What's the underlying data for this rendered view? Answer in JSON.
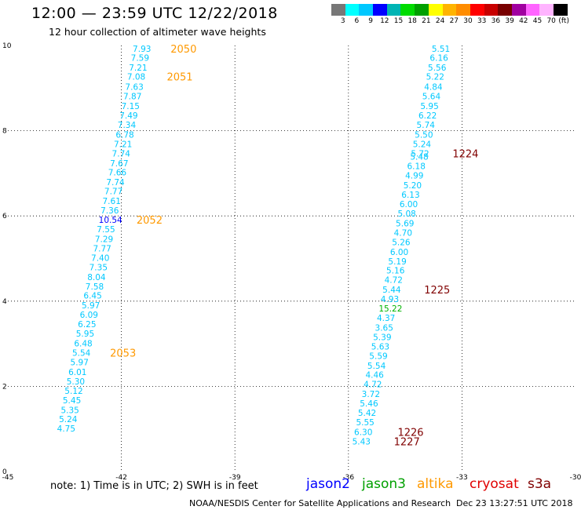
{
  "header": {
    "title": "12:00 — 23:59 UTC 12/22/2018",
    "subtitle": "12 hour collection of altimeter wave heights"
  },
  "colorbar": {
    "labels": [
      "3",
      "6",
      "9",
      "12",
      "15",
      "18",
      "21",
      "24",
      "27",
      "30",
      "33",
      "36",
      "39",
      "42",
      "45",
      "70",
      "(ft)"
    ],
    "colors": [
      "#777777",
      "#00ffff",
      "#00c8ff",
      "#0000ff",
      "#00b4b4",
      "#00dc00",
      "#00a000",
      "#ffff00",
      "#ffb400",
      "#ff8c00",
      "#ff0000",
      "#c80000",
      "#780000",
      "#a000a0",
      "#ff64ff",
      "#ffb4ff",
      "#000000"
    ]
  },
  "chart_data": {
    "type": "scatter",
    "x_axis": {
      "range": [
        -45,
        -30
      ],
      "ticks": [
        "-45",
        "-42",
        "-39",
        "-36",
        "-33",
        "-30"
      ],
      "tick_values": [
        -45,
        -42,
        -39,
        -36,
        -33,
        -30
      ]
    },
    "y_axis": {
      "range": [
        0,
        10
      ],
      "ticks": [
        "0",
        "2",
        "4",
        "6",
        "8",
        "10"
      ],
      "tick_values": [
        0,
        2,
        4,
        6,
        8,
        10
      ]
    },
    "grid": true,
    "colors": {
      "light": "#00c8ff",
      "dark": "#0000ff",
      "green": "#00b400",
      "orange": "#ff9900",
      "maroon": "#800000"
    },
    "series": [
      {
        "satellite": "altika",
        "points": [
          {
            "x": -41.7,
            "y": 9.93,
            "label": "7.93",
            "color": "light"
          },
          {
            "x": -41.75,
            "y": 9.71,
            "label": "7.59",
            "color": "light"
          },
          {
            "x": -41.8,
            "y": 9.48,
            "label": "7.21",
            "color": "light"
          },
          {
            "x": -41.85,
            "y": 9.27,
            "label": "7.08",
            "color": "light"
          },
          {
            "x": -41.9,
            "y": 9.03,
            "label": "7.63",
            "color": "light"
          },
          {
            "x": -41.95,
            "y": 8.81,
            "label": "7.87",
            "color": "light"
          },
          {
            "x": -42.0,
            "y": 8.58,
            "label": "7.15",
            "color": "light"
          },
          {
            "x": -42.05,
            "y": 8.36,
            "label": "7.49",
            "color": "light"
          },
          {
            "x": -42.1,
            "y": 8.14,
            "label": "7.34",
            "color": "light"
          },
          {
            "x": -42.15,
            "y": 7.91,
            "label": "6.78",
            "color": "light"
          },
          {
            "x": -42.2,
            "y": 7.69,
            "label": "7.21",
            "color": "light"
          },
          {
            "x": -42.25,
            "y": 7.47,
            "label": "7.74",
            "color": "light"
          },
          {
            "x": -42.3,
            "y": 7.24,
            "label": "7.67",
            "color": "light"
          },
          {
            "x": -42.35,
            "y": 7.03,
            "label": "7.66",
            "color": "light"
          },
          {
            "x": -42.4,
            "y": 6.8,
            "label": "7.74",
            "color": "light"
          },
          {
            "x": -42.45,
            "y": 6.58,
            "label": "7.77",
            "color": "light"
          },
          {
            "x": -42.5,
            "y": 6.35,
            "label": "7.61",
            "color": "light"
          },
          {
            "x": -42.55,
            "y": 6.13,
            "label": "7.36",
            "color": "light"
          },
          {
            "x": -42.6,
            "y": 5.91,
            "label": "10.54",
            "color": "dark"
          },
          {
            "x": -42.65,
            "y": 5.69,
            "label": "7.55",
            "color": "light"
          },
          {
            "x": -42.7,
            "y": 5.46,
            "label": "7.29",
            "color": "light"
          },
          {
            "x": -42.75,
            "y": 5.24,
            "label": "7.77",
            "color": "light"
          },
          {
            "x": -42.8,
            "y": 5.02,
            "label": "7.40",
            "color": "light"
          },
          {
            "x": -42.85,
            "y": 4.8,
            "label": "7.35",
            "color": "light"
          },
          {
            "x": -42.9,
            "y": 4.57,
            "label": "8.04",
            "color": "light"
          },
          {
            "x": -42.95,
            "y": 4.35,
            "label": "7.58",
            "color": "light"
          },
          {
            "x": -43.0,
            "y": 4.13,
            "label": "6.45",
            "color": "light"
          },
          {
            "x": -43.05,
            "y": 3.9,
            "label": "5.97",
            "color": "light"
          },
          {
            "x": -43.1,
            "y": 3.68,
            "label": "6.09",
            "color": "light"
          },
          {
            "x": -43.15,
            "y": 3.46,
            "label": "6.25",
            "color": "light"
          },
          {
            "x": -43.2,
            "y": 3.24,
            "label": "5.95",
            "color": "light"
          },
          {
            "x": -43.25,
            "y": 3.01,
            "label": "6.48",
            "color": "light"
          },
          {
            "x": -43.3,
            "y": 2.79,
            "label": "5.54",
            "color": "light"
          },
          {
            "x": -43.35,
            "y": 2.57,
            "label": "5.97",
            "color": "light"
          },
          {
            "x": -43.4,
            "y": 2.34,
            "label": "6.01",
            "color": "light"
          },
          {
            "x": -43.45,
            "y": 2.12,
            "label": "5.30",
            "color": "light"
          },
          {
            "x": -43.5,
            "y": 1.9,
            "label": "5.12",
            "color": "light"
          },
          {
            "x": -43.55,
            "y": 1.68,
            "label": "5.45",
            "color": "light"
          },
          {
            "x": -43.6,
            "y": 1.45,
            "label": "5.35",
            "color": "light"
          },
          {
            "x": -43.65,
            "y": 1.23,
            "label": "5.24",
            "color": "light"
          },
          {
            "x": -43.7,
            "y": 1.01,
            "label": "4.75",
            "color": "light"
          }
        ],
        "time_labels": [
          {
            "x": -40.7,
            "y": 9.93,
            "label": "2050",
            "color": "orange"
          },
          {
            "x": -40.8,
            "y": 9.27,
            "label": "2051",
            "color": "orange"
          },
          {
            "x": -41.6,
            "y": 5.91,
            "label": "2052",
            "color": "orange"
          },
          {
            "x": -42.3,
            "y": 2.79,
            "label": "2053",
            "color": "orange"
          }
        ]
      },
      {
        "satellite": "cryosat / s3a",
        "points": [
          {
            "x": -33.8,
            "y": 9.93,
            "label": "5.51",
            "color": "light"
          },
          {
            "x": -33.85,
            "y": 9.71,
            "label": "6.16",
            "color": "light"
          },
          {
            "x": -33.9,
            "y": 9.48,
            "label": "5.56",
            "color": "light"
          },
          {
            "x": -33.95,
            "y": 9.27,
            "label": "5.22",
            "color": "light"
          },
          {
            "x": -34.0,
            "y": 9.03,
            "label": "4.84",
            "color": "light"
          },
          {
            "x": -34.05,
            "y": 8.81,
            "label": "5.64",
            "color": "light"
          },
          {
            "x": -34.1,
            "y": 8.58,
            "label": "5.95",
            "color": "light"
          },
          {
            "x": -34.15,
            "y": 8.36,
            "label": "6.22",
            "color": "light"
          },
          {
            "x": -34.2,
            "y": 8.14,
            "label": "5.74",
            "color": "light"
          },
          {
            "x": -34.25,
            "y": 7.91,
            "label": "5.50",
            "color": "light"
          },
          {
            "x": -34.3,
            "y": 7.69,
            "label": "5.24",
            "color": "light"
          },
          {
            "x": -34.35,
            "y": 7.47,
            "label": "5.72",
            "color": "light"
          },
          {
            "x": -34.37,
            "y": 7.39,
            "label": "5.48",
            "color": "light"
          },
          {
            "x": -34.45,
            "y": 7.17,
            "label": "6.18",
            "color": "light"
          },
          {
            "x": -34.5,
            "y": 6.95,
            "label": "4.99",
            "color": "light"
          },
          {
            "x": -34.55,
            "y": 6.72,
            "label": "5.20",
            "color": "light"
          },
          {
            "x": -34.6,
            "y": 6.5,
            "label": "6.13",
            "color": "light"
          },
          {
            "x": -34.65,
            "y": 6.28,
            "label": "6.00",
            "color": "light"
          },
          {
            "x": -34.7,
            "y": 6.06,
            "label": "5.08",
            "color": "light"
          },
          {
            "x": -34.75,
            "y": 5.83,
            "label": "5.69",
            "color": "light"
          },
          {
            "x": -34.8,
            "y": 5.61,
            "label": "4.70",
            "color": "light"
          },
          {
            "x": -34.85,
            "y": 5.39,
            "label": "5.26",
            "color": "light"
          },
          {
            "x": -34.9,
            "y": 5.16,
            "label": "6.00",
            "color": "light"
          },
          {
            "x": -34.95,
            "y": 4.94,
            "label": "5.19",
            "color": "light"
          },
          {
            "x": -35.0,
            "y": 4.72,
            "label": "5.16",
            "color": "light"
          },
          {
            "x": -35.05,
            "y": 4.5,
            "label": "4.72",
            "color": "light"
          },
          {
            "x": -35.1,
            "y": 4.27,
            "label": "5.44",
            "color": "light"
          },
          {
            "x": -35.15,
            "y": 4.05,
            "label": "4.93",
            "color": "light"
          },
          {
            "x": -35.2,
            "y": 3.83,
            "label": "15.22",
            "color": "green"
          },
          {
            "x": -35.25,
            "y": 3.61,
            "label": "4.37",
            "color": "light"
          },
          {
            "x": -35.3,
            "y": 3.38,
            "label": "3.65",
            "color": "light"
          },
          {
            "x": -35.35,
            "y": 3.16,
            "label": "5.39",
            "color": "light"
          },
          {
            "x": -35.4,
            "y": 2.94,
            "label": "5.63",
            "color": "light"
          },
          {
            "x": -35.45,
            "y": 2.72,
            "label": "5.59",
            "color": "light"
          },
          {
            "x": -35.5,
            "y": 2.49,
            "label": "5.54",
            "color": "light"
          },
          {
            "x": -35.55,
            "y": 2.27,
            "label": "4.46",
            "color": "light"
          },
          {
            "x": -35.6,
            "y": 2.05,
            "label": "4.72",
            "color": "light"
          },
          {
            "x": -35.65,
            "y": 1.82,
            "label": "3.72",
            "color": "light"
          },
          {
            "x": -35.7,
            "y": 1.6,
            "label": "5.46",
            "color": "light"
          },
          {
            "x": -35.75,
            "y": 1.38,
            "label": "5.42",
            "color": "light"
          },
          {
            "x": -35.8,
            "y": 1.16,
            "label": "5.55",
            "color": "light"
          },
          {
            "x": -35.85,
            "y": 0.93,
            "label": "6.30",
            "color": "light"
          },
          {
            "x": -35.9,
            "y": 0.71,
            "label": "5.43",
            "color": "light"
          }
        ],
        "time_labels": [
          {
            "x": -33.25,
            "y": 7.47,
            "label": "1224",
            "color": "maroon"
          },
          {
            "x": -34.0,
            "y": 4.27,
            "label": "1225",
            "color": "maroon"
          },
          {
            "x": -34.7,
            "y": 0.93,
            "label": "1226",
            "color": "maroon"
          },
          {
            "x": -34.8,
            "y": 0.71,
            "label": "1227",
            "color": "maroon"
          }
        ]
      }
    ]
  },
  "footer": {
    "note": "note: 1) Time is in UTC; 2) SWH is in feet",
    "legend": [
      {
        "label": "jason2",
        "color": "#0000ff"
      },
      {
        "label": "jason3",
        "color": "#00a000"
      },
      {
        "label": "altika",
        "color": "#ff9900"
      },
      {
        "label": "cryosat",
        "color": "#e00000"
      },
      {
        "label": "s3a",
        "color": "#800000"
      }
    ],
    "credit": "NOAA/NESDIS Center for Satellite Applications and Research",
    "timestamp": "Dec 23 13:27:51 UTC 2018"
  }
}
